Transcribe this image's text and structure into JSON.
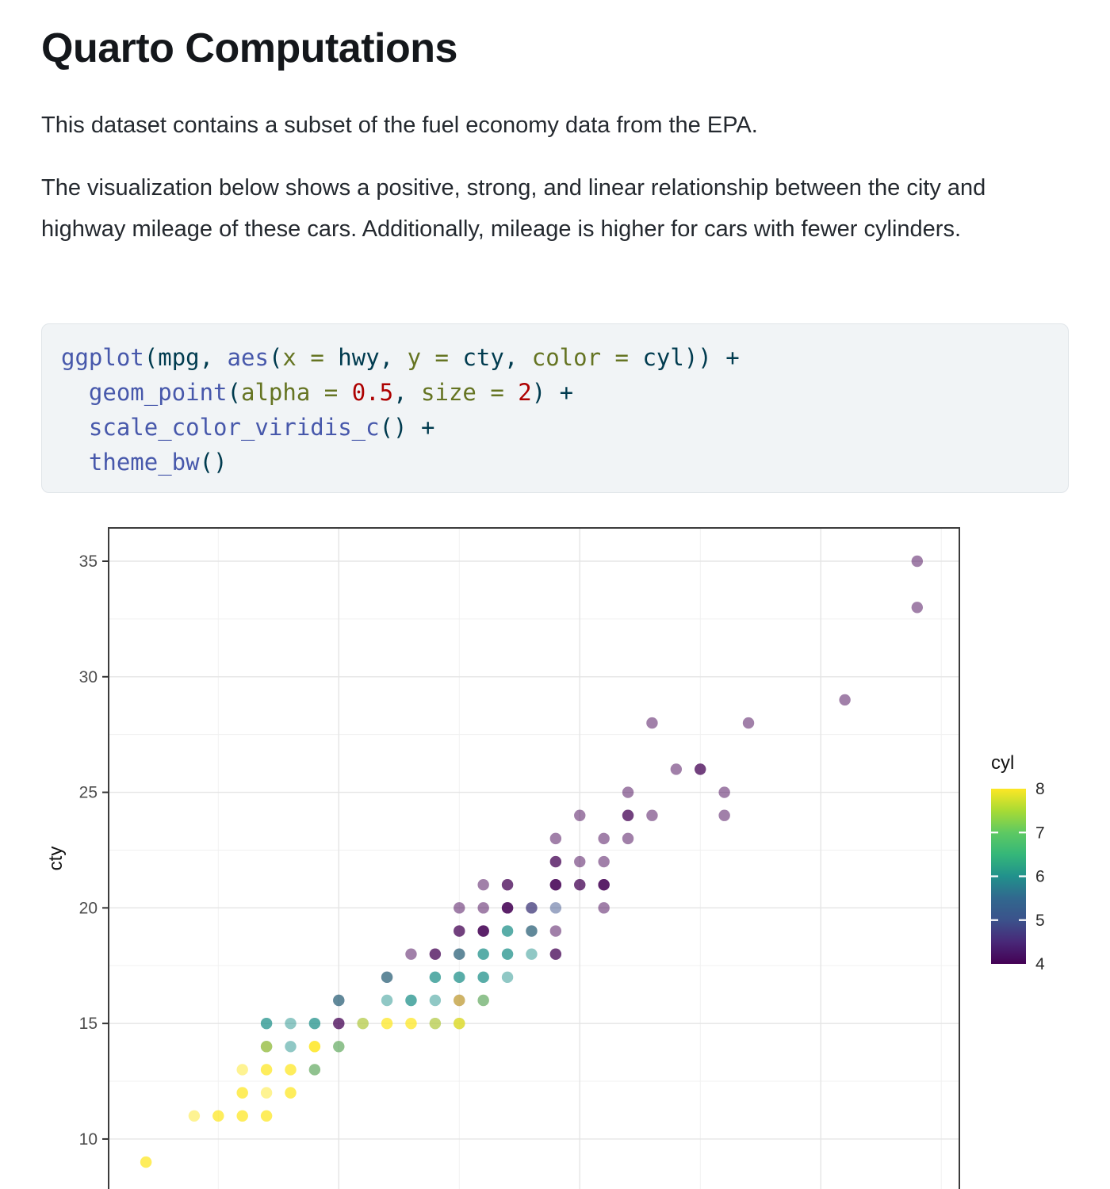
{
  "doc": {
    "title": "Quarto Computations",
    "paragraph1": "This dataset contains a subset of the fuel economy data from the EPA.",
    "paragraph2": "The visualization below shows a positive, strong, and linear relationship between the city and highway mileage of these cars. Additionally, mileage is higher for cars with fewer cylinders."
  },
  "code": {
    "token_colors": {
      "fu": "#4758AB",
      "no": "#003B4F",
      "at": "#657422",
      "dv": "#AD0000"
    },
    "lines": [
      [
        [
          "fu",
          "ggplot"
        ],
        [
          "no",
          "("
        ],
        [
          "no",
          "mpg"
        ],
        [
          "no",
          ", "
        ],
        [
          "fu",
          "aes"
        ],
        [
          "no",
          "("
        ],
        [
          "at",
          "x"
        ],
        [
          "no",
          " "
        ],
        [
          "at",
          "="
        ],
        [
          "no",
          " hwy, "
        ],
        [
          "at",
          "y"
        ],
        [
          "no",
          " "
        ],
        [
          "at",
          "="
        ],
        [
          "no",
          " cty, "
        ],
        [
          "at",
          "color"
        ],
        [
          "no",
          " "
        ],
        [
          "at",
          "="
        ],
        [
          "no",
          " cyl)) +"
        ]
      ],
      [
        [
          "no",
          "  "
        ],
        [
          "fu",
          "geom_point"
        ],
        [
          "no",
          "("
        ],
        [
          "at",
          "alpha"
        ],
        [
          "no",
          " "
        ],
        [
          "at",
          "="
        ],
        [
          "no",
          " "
        ],
        [
          "dv",
          "0.5"
        ],
        [
          "no",
          ", "
        ],
        [
          "at",
          "size"
        ],
        [
          "no",
          " "
        ],
        [
          "at",
          "="
        ],
        [
          "no",
          " "
        ],
        [
          "dv",
          "2"
        ],
        [
          "no",
          ") +"
        ]
      ],
      [
        [
          "no",
          "  "
        ],
        [
          "fu",
          "scale_color_viridis_c"
        ],
        [
          "no",
          "() +"
        ]
      ],
      [
        [
          "no",
          "  "
        ],
        [
          "fu",
          "theme_bw"
        ],
        [
          "no",
          "()"
        ]
      ]
    ]
  },
  "chart_data": {
    "type": "scatter",
    "x_field": "hwy",
    "y_field": "cty",
    "color_field": "cyl",
    "ylabel": "cty",
    "legend_title": "cyl",
    "point_alpha": 0.5,
    "xlim": [
      10.45,
      45.75
    ],
    "ylim": [
      7.7,
      36.44
    ],
    "x_gridlines_major": [
      20,
      30,
      40
    ],
    "x_gridlines_minor": [
      15,
      25,
      35,
      45
    ],
    "y_gridlines_major": [
      10,
      15,
      20,
      25,
      30,
      35
    ],
    "y_gridlines_minor": [
      12.5,
      17.5,
      22.5,
      27.5,
      32.5
    ],
    "y_tick_labels": [
      35,
      30,
      25,
      20,
      15,
      10
    ],
    "legend_values": [
      8,
      7,
      6,
      5,
      4
    ],
    "legend_tick_values": [
      7,
      6,
      5
    ],
    "viridis": {
      "4": "#440154",
      "5": "#3B528B",
      "6": "#21918C",
      "7": "#5EC962",
      "8": "#FDE725"
    },
    "viridis_gradient_top_to_bottom": [
      "#FDE725",
      "#A8DB34",
      "#5EC962",
      "#35B779",
      "#21918C",
      "#31688E",
      "#3B528B",
      "#482878",
      "#440154"
    ],
    "points": [
      [
        44,
        35,
        [
          4
        ]
      ],
      [
        44,
        33,
        [
          4
        ]
      ],
      [
        41,
        29,
        [
          4
        ]
      ],
      [
        33,
        28,
        [
          4
        ]
      ],
      [
        37,
        28,
        [
          4
        ]
      ],
      [
        34,
        26,
        [
          4
        ]
      ],
      [
        35,
        26,
        [
          4,
          4
        ]
      ],
      [
        32,
        25,
        [
          4
        ]
      ],
      [
        36,
        25,
        [
          4
        ]
      ],
      [
        30,
        24,
        [
          4
        ]
      ],
      [
        32,
        24,
        [
          4,
          4
        ]
      ],
      [
        33,
        24,
        [
          4
        ]
      ],
      [
        36,
        24,
        [
          4
        ]
      ],
      [
        29,
        23,
        [
          4
        ]
      ],
      [
        31,
        23,
        [
          4
        ]
      ],
      [
        32,
        23,
        [
          4
        ]
      ],
      [
        29,
        22,
        [
          4,
          4
        ]
      ],
      [
        30,
        22,
        [
          4
        ]
      ],
      [
        31,
        22,
        [
          4
        ]
      ],
      [
        26,
        21,
        [
          4
        ]
      ],
      [
        27,
        21,
        [
          4,
          4
        ]
      ],
      [
        29,
        21,
        [
          4,
          4,
          4
        ]
      ],
      [
        30,
        21,
        [
          4,
          4
        ]
      ],
      [
        31,
        21,
        [
          4,
          4,
          4
        ]
      ],
      [
        25,
        20,
        [
          4
        ]
      ],
      [
        26,
        20,
        [
          4
        ]
      ],
      [
        27,
        20,
        [
          4,
          4,
          4
        ]
      ],
      [
        28,
        20,
        [
          4,
          5
        ]
      ],
      [
        29,
        20,
        [
          5
        ]
      ],
      [
        31,
        20,
        [
          4
        ]
      ],
      [
        25,
        19,
        [
          4,
          4
        ]
      ],
      [
        26,
        19,
        [
          4,
          4,
          4
        ]
      ],
      [
        27,
        19,
        [
          6,
          6
        ]
      ],
      [
        28,
        19,
        [
          4,
          6
        ]
      ],
      [
        29,
        19,
        [
          4
        ]
      ],
      [
        23,
        18,
        [
          4
        ]
      ],
      [
        24,
        18,
        [
          4,
          4
        ]
      ],
      [
        25,
        18,
        [
          4,
          6
        ]
      ],
      [
        26,
        18,
        [
          6,
          6
        ]
      ],
      [
        27,
        18,
        [
          6,
          6
        ]
      ],
      [
        28,
        18,
        [
          6
        ]
      ],
      [
        29,
        18,
        [
          4,
          4
        ]
      ],
      [
        22,
        17,
        [
          4,
          6
        ]
      ],
      [
        24,
        17,
        [
          6,
          6
        ]
      ],
      [
        25,
        17,
        [
          6,
          6
        ]
      ],
      [
        26,
        17,
        [
          6,
          6
        ]
      ],
      [
        27,
        17,
        [
          6
        ]
      ],
      [
        20,
        16,
        [
          4,
          6
        ]
      ],
      [
        22,
        16,
        [
          6
        ]
      ],
      [
        23,
        16,
        [
          6,
          6
        ]
      ],
      [
        24,
        16,
        [
          6
        ]
      ],
      [
        25,
        16,
        [
          4,
          8
        ]
      ],
      [
        26,
        16,
        [
          8,
          6
        ]
      ],
      [
        17,
        15,
        [
          6,
          6
        ]
      ],
      [
        18,
        15,
        [
          6
        ]
      ],
      [
        19,
        15,
        [
          6,
          6
        ]
      ],
      [
        20,
        15,
        [
          4,
          4
        ]
      ],
      [
        21,
        15,
        [
          6,
          8
        ]
      ],
      [
        22,
        15,
        [
          8,
          8
        ]
      ],
      [
        23,
        15,
        [
          8,
          8
        ]
      ],
      [
        24,
        15,
        [
          6,
          8
        ]
      ],
      [
        25,
        15,
        [
          6,
          8,
          8
        ]
      ],
      [
        17,
        14,
        [
          6,
          6,
          8
        ]
      ],
      [
        18,
        14,
        [
          6
        ]
      ],
      [
        19,
        14,
        [
          8,
          8,
          8
        ]
      ],
      [
        20,
        14,
        [
          8,
          6
        ]
      ],
      [
        16,
        13,
        [
          8
        ]
      ],
      [
        17,
        13,
        [
          8,
          8
        ]
      ],
      [
        18,
        13,
        [
          8,
          8
        ]
      ],
      [
        19,
        13,
        [
          8,
          6
        ]
      ],
      [
        16,
        12,
        [
          8,
          8
        ]
      ],
      [
        17,
        12,
        [
          8
        ]
      ],
      [
        18,
        12,
        [
          8,
          8
        ]
      ],
      [
        14,
        11,
        [
          8
        ]
      ],
      [
        15,
        11,
        [
          8,
          8
        ]
      ],
      [
        16,
        11,
        [
          8,
          8
        ]
      ],
      [
        17,
        11,
        [
          8,
          8
        ]
      ],
      [
        12,
        9,
        [
          8,
          8
        ]
      ]
    ]
  }
}
